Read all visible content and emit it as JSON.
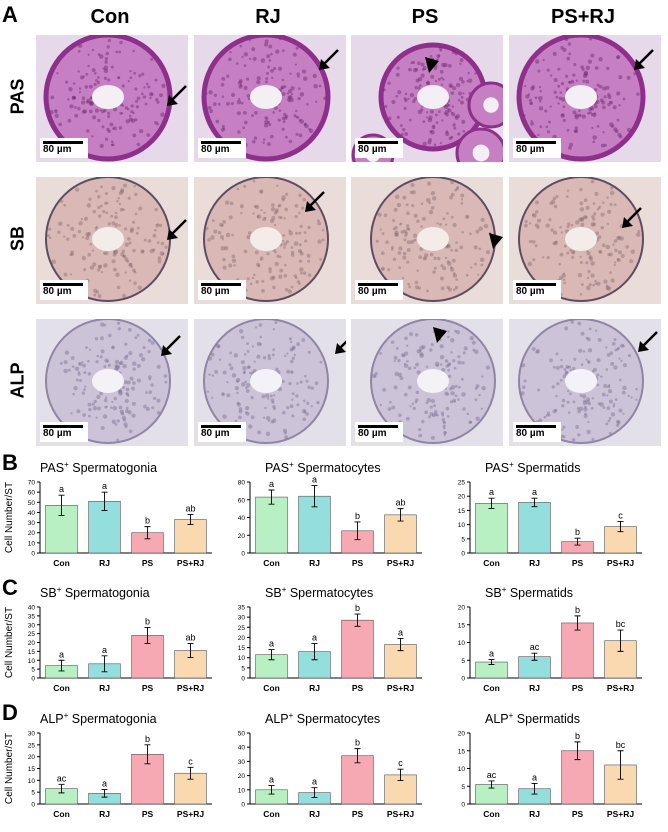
{
  "panel_letters": [
    "A",
    "B",
    "C",
    "D"
  ],
  "columns": [
    "Con",
    "RJ",
    "PS",
    "PS+RJ"
  ],
  "rows": [
    "PAS",
    "SB",
    "ALP"
  ],
  "scale_label": "80 µm",
  "colors": {
    "Con": "#b8f0c4",
    "RJ": "#94dede",
    "PS": "#f7a9b3",
    "PS+RJ": "#fbd9b0"
  },
  "chart_data": [
    {
      "type": "bar",
      "panel": "B",
      "title_sup": "PAS",
      "title_suffix": " Spermatogonia",
      "ylabel": "Cell Number/ST",
      "categories": [
        "Con",
        "RJ",
        "PS",
        "PS+RJ"
      ],
      "values": [
        47,
        51,
        20,
        33
      ],
      "errors": [
        10,
        9,
        6,
        5
      ],
      "letters": [
        "a",
        "a",
        "b",
        "ab"
      ],
      "ylim": [
        0,
        70
      ],
      "yticks": [
        0,
        10,
        20,
        30,
        40,
        50,
        60,
        70
      ]
    },
    {
      "type": "bar",
      "panel": "B",
      "title_sup": "PAS",
      "title_suffix": " Spermatocytes",
      "ylabel": "",
      "categories": [
        "Con",
        "RJ",
        "PS",
        "PS+RJ"
      ],
      "values": [
        63,
        64,
        25,
        43
      ],
      "errors": [
        8,
        12,
        10,
        7
      ],
      "letters": [
        "a",
        "a",
        "b",
        "ab"
      ],
      "ylim": [
        0,
        80
      ],
      "yticks": [
        0,
        20,
        40,
        60,
        80
      ]
    },
    {
      "type": "bar",
      "panel": "B",
      "title_sup": "PAS",
      "title_suffix": " Spermatids",
      "ylabel": "",
      "categories": [
        "Con",
        "RJ",
        "PS",
        "PS+RJ"
      ],
      "values": [
        17.5,
        17.8,
        4,
        9.3
      ],
      "errors": [
        1.8,
        1.5,
        1.2,
        1.8
      ],
      "letters": [
        "a",
        "a",
        "b",
        "c"
      ],
      "ylim": [
        0,
        25
      ],
      "yticks": [
        0,
        5,
        10,
        15,
        20,
        25
      ]
    },
    {
      "type": "bar",
      "panel": "C",
      "title_sup": "SB",
      "title_suffix": " Spermatogonia",
      "ylabel": "Cell Number/ST",
      "categories": [
        "Con",
        "RJ",
        "PS",
        "PS+RJ"
      ],
      "values": [
        7,
        8,
        24,
        15.5
      ],
      "errors": [
        3,
        4.5,
        4.5,
        4
      ],
      "letters": [
        "a",
        "a",
        "b",
        "ab"
      ],
      "ylim": [
        0,
        40
      ],
      "yticks": [
        0,
        5,
        10,
        15,
        20,
        25,
        30,
        35,
        40
      ]
    },
    {
      "type": "bar",
      "panel": "C",
      "title_sup": "SB",
      "title_suffix": " Spermatocytes",
      "ylabel": "",
      "categories": [
        "Con",
        "RJ",
        "PS",
        "PS+RJ"
      ],
      "values": [
        11.5,
        13,
        28.5,
        16.5
      ],
      "errors": [
        2.5,
        4,
        3,
        3
      ],
      "letters": [
        "a",
        "a",
        "b",
        "a"
      ],
      "ylim": [
        0,
        35
      ],
      "yticks": [
        0,
        5,
        10,
        15,
        20,
        25,
        30,
        35
      ]
    },
    {
      "type": "bar",
      "panel": "C",
      "title_sup": "SB",
      "title_suffix": " Spermatids",
      "ylabel": "",
      "categories": [
        "Con",
        "RJ",
        "PS",
        "PS+RJ"
      ],
      "values": [
        4.5,
        6,
        15.5,
        10.5
      ],
      "errors": [
        0.7,
        1,
        2,
        3
      ],
      "letters": [
        "a",
        "ac",
        "b",
        "bc"
      ],
      "ylim": [
        0,
        20
      ],
      "yticks": [
        0,
        5,
        10,
        15,
        20
      ]
    },
    {
      "type": "bar",
      "panel": "D",
      "title_sup": "ALP",
      "title_suffix": " Spermatogonia",
      "ylabel": "Cell Number/ST",
      "categories": [
        "Con",
        "RJ",
        "PS",
        "PS+RJ"
      ],
      "values": [
        6.5,
        4.5,
        21,
        13
      ],
      "errors": [
        1.8,
        1.6,
        4,
        2.5
      ],
      "letters": [
        "ac",
        "a",
        "b",
        "c"
      ],
      "ylim": [
        0,
        30
      ],
      "yticks": [
        0,
        5,
        10,
        15,
        20,
        25,
        30
      ]
    },
    {
      "type": "bar",
      "panel": "D",
      "title_sup": "ALP",
      "title_suffix": " Spermatocytes",
      "ylabel": "",
      "categories": [
        "Con",
        "RJ",
        "PS",
        "PS+RJ"
      ],
      "values": [
        10,
        8,
        34,
        20.5
      ],
      "errors": [
        3,
        3.5,
        5,
        4
      ],
      "letters": [
        "a",
        "a",
        "b",
        "c"
      ],
      "ylim": [
        0,
        50
      ],
      "yticks": [
        0,
        10,
        20,
        30,
        40,
        50
      ]
    },
    {
      "type": "bar",
      "panel": "D",
      "title_sup": "ALP",
      "title_suffix": " Spermatids",
      "ylabel": "",
      "categories": [
        "Con",
        "RJ",
        "PS",
        "PS+RJ"
      ],
      "values": [
        5.5,
        4.3,
        15,
        11
      ],
      "errors": [
        1,
        1.5,
        2.5,
        4
      ],
      "letters": [
        "ac",
        "a",
        "b",
        "bc"
      ],
      "ylim": [
        0,
        20
      ],
      "yticks": [
        0,
        5,
        10,
        15,
        20
      ]
    }
  ]
}
